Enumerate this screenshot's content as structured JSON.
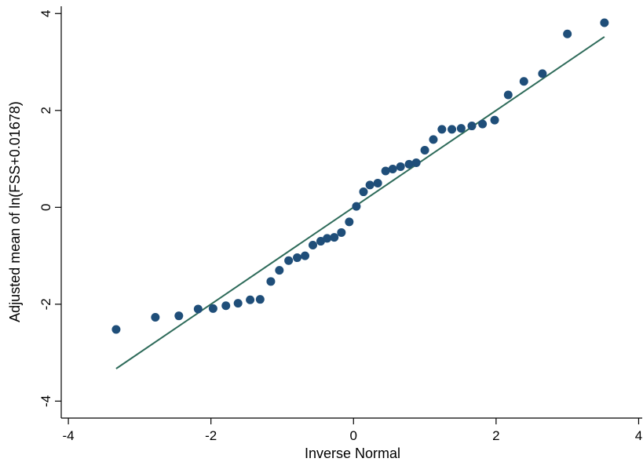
{
  "chart_data": {
    "type": "scatter",
    "xlabel": "Inverse Normal",
    "ylabel": "Adjusted mean of ln(FSS+0.01678)",
    "xlim": [
      -4.1,
      4.05
    ],
    "ylim": [
      -4.35,
      4.15
    ],
    "x_ticks": [
      -4,
      -2,
      0,
      2,
      4
    ],
    "y_ticks": [
      -4,
      -2,
      0,
      2,
      4
    ],
    "x_tick_labels": [
      "-4",
      "-2",
      "0",
      "2",
      "4"
    ],
    "y_tick_labels": [
      "-4",
      "-2",
      "0",
      "2",
      "4"
    ],
    "grid": false,
    "legend": "none",
    "series": [
      {
        "color": "#1f4e79",
        "x": [
          -3.33,
          -2.78,
          -2.45,
          -2.18,
          -1.97,
          -1.79,
          -1.62,
          -1.45,
          -1.31,
          -1.16,
          -1.04,
          -0.91,
          -0.79,
          -0.68,
          -0.57,
          -0.46,
          -0.37,
          -0.27,
          -0.17,
          -0.06,
          0.04,
          0.14,
          0.23,
          0.34,
          0.45,
          0.55,
          0.66,
          0.78,
          0.88,
          1.0,
          1.12,
          1.24,
          1.38,
          1.51,
          1.66,
          1.81,
          1.98,
          2.17,
          2.39,
          2.65,
          3.0,
          3.52
        ],
        "y": [
          -2.52,
          -2.27,
          -2.24,
          -2.1,
          -2.09,
          -2.03,
          -1.98,
          -1.91,
          -1.9,
          -1.53,
          -1.3,
          -1.1,
          -1.04,
          -1.0,
          -0.78,
          -0.7,
          -0.64,
          -0.62,
          -0.52,
          -0.3,
          0.02,
          0.32,
          0.46,
          0.5,
          0.75,
          0.79,
          0.84,
          0.89,
          0.92,
          1.18,
          1.4,
          1.61,
          1.61,
          1.63,
          1.68,
          1.72,
          1.8,
          2.32,
          2.6,
          2.76,
          3.58,
          3.81
        ]
      }
    ],
    "fit_line": {
      "color": "#2e6b5a",
      "x": [
        -3.33,
        3.52
      ],
      "y": [
        -3.33,
        3.52
      ]
    }
  }
}
